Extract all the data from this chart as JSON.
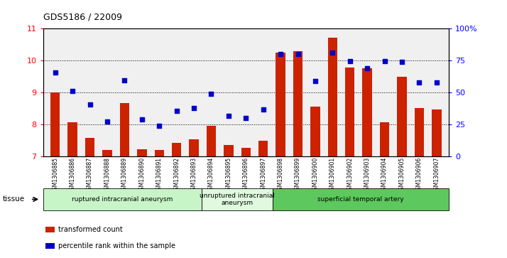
{
  "title": "GDS5186 / 22009",
  "categories": [
    "GSM1306885",
    "GSM1306886",
    "GSM1306887",
    "GSM1306888",
    "GSM1306889",
    "GSM1306890",
    "GSM1306891",
    "GSM1306892",
    "GSM1306893",
    "GSM1306894",
    "GSM1306895",
    "GSM1306896",
    "GSM1306897",
    "GSM1306898",
    "GSM1306899",
    "GSM1306900",
    "GSM1306901",
    "GSM1306902",
    "GSM1306903",
    "GSM1306904",
    "GSM1306905",
    "GSM1306906",
    "GSM1306907"
  ],
  "bar_values": [
    9.0,
    8.05,
    7.58,
    7.2,
    8.65,
    7.22,
    7.2,
    7.42,
    7.52,
    7.95,
    7.35,
    7.25,
    7.48,
    10.25,
    10.28,
    8.55,
    10.7,
    9.78,
    9.75,
    8.05,
    9.48,
    8.5,
    8.45
  ],
  "scatter_values": [
    9.62,
    9.05,
    8.62,
    8.08,
    9.38,
    8.15,
    7.95,
    8.42,
    8.5,
    8.95,
    8.25,
    8.2,
    8.45,
    10.2,
    10.2,
    9.35,
    10.25,
    9.98,
    9.75,
    9.98,
    9.95,
    9.3,
    9.3
  ],
  "groups": [
    {
      "label": "ruptured intracranial aneurysm",
      "start": 0,
      "end": 9,
      "color": "#c8f5c8"
    },
    {
      "label": "unruptured intracranial\naneurysm",
      "start": 9,
      "end": 13,
      "color": "#dffade"
    },
    {
      "label": "superficial temporal artery",
      "start": 13,
      "end": 23,
      "color": "#5dc85d"
    }
  ],
  "ylim": [
    7,
    11
  ],
  "yticks": [
    7,
    8,
    9,
    10,
    11
  ],
  "y2lim": [
    0,
    100
  ],
  "y2ticks": [
    0,
    25,
    50,
    75,
    100
  ],
  "y2ticklabels": [
    "0",
    "25",
    "50",
    "75",
    "100%"
  ],
  "bar_color": "#cc2200",
  "scatter_color": "#0000cc",
  "bar_bottom": 7.0,
  "bg_color": "#ffffff",
  "plot_bg_color": "#f0f0f0",
  "legend_bar_label": "transformed count",
  "legend_scatter_label": "percentile rank within the sample",
  "tissue_label": "tissue"
}
